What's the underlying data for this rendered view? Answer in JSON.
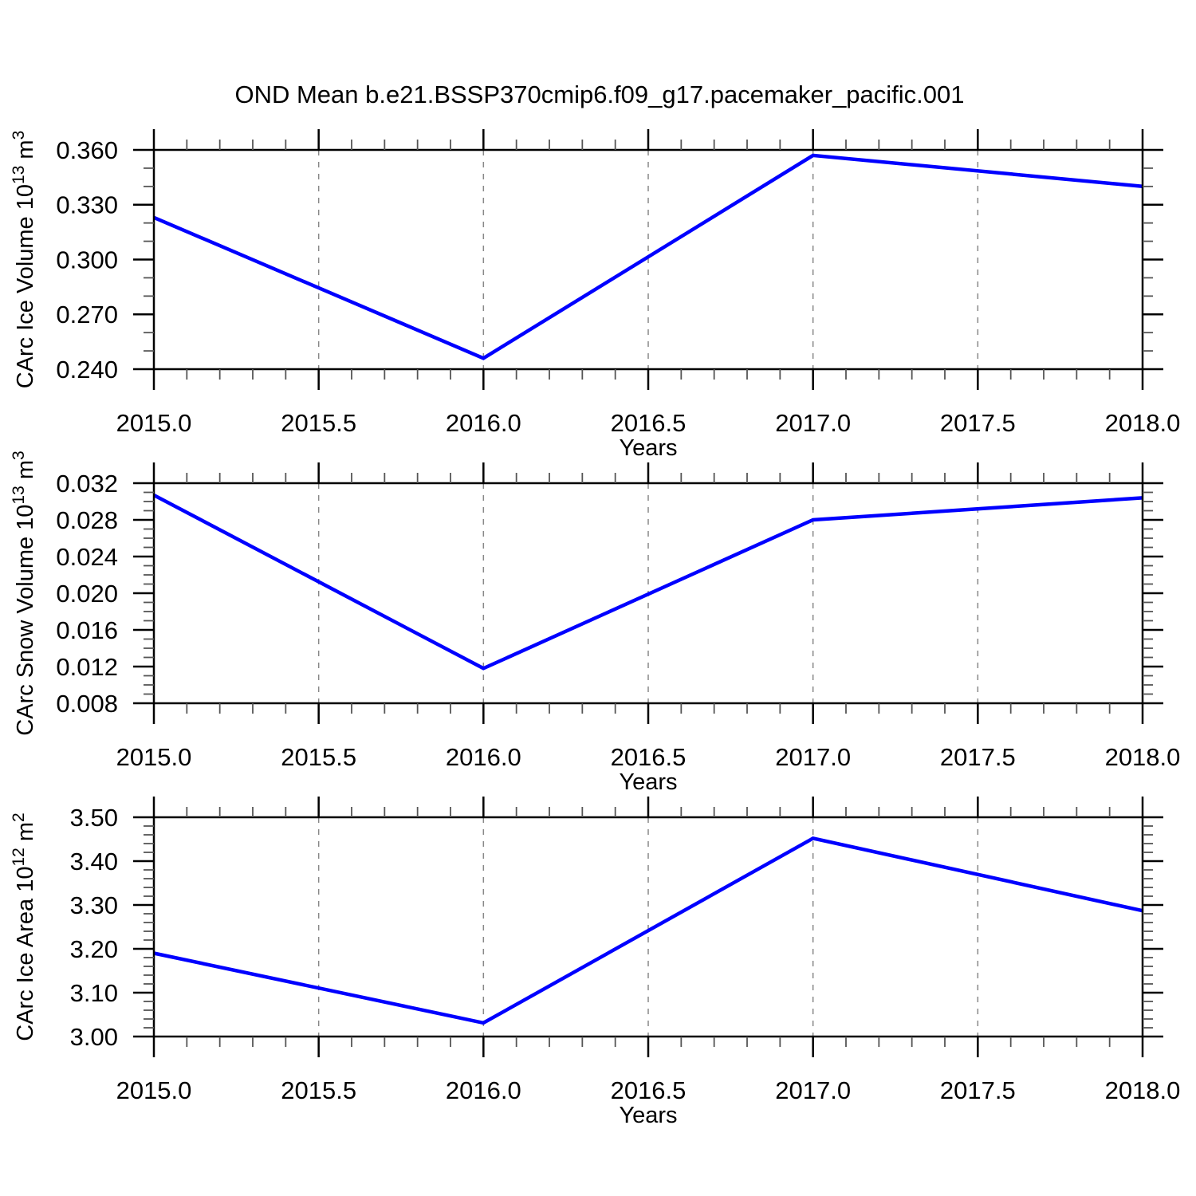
{
  "title": "OND Mean b.e21.BSSP370cmip6.f09_g17.pacemaker_pacific.001",
  "line_color": "#0000ff",
  "grid_color": "#888888",
  "axis_color": "#000000",
  "chart_data": [
    {
      "id": "carc-ice-volume",
      "type": "line",
      "x": [
        2015.0,
        2016.0,
        2017.0,
        2018.0
      ],
      "values": [
        0.323,
        0.246,
        0.357,
        0.34
      ],
      "xlabel": "Years",
      "ylabel_parts": [
        {
          "text": "CArc Ice Volume 10"
        },
        {
          "sup": "13"
        },
        {
          "text": " m"
        },
        {
          "sup": "3"
        }
      ],
      "ylim": [
        0.24,
        0.36
      ],
      "ytick_major": 0.03,
      "ytick_minor": 0.01,
      "ytick_decimals": 3,
      "xlim": [
        2015.0,
        2018.0
      ],
      "xtick_major": 0.5,
      "xtick_minor": 0.1,
      "xtick_decimals": 1,
      "grid_x": [
        2015.5,
        2016.0,
        2016.5,
        2017.0,
        2017.5
      ],
      "grid_on": true,
      "legend": null
    },
    {
      "id": "carc-snow-volume",
      "type": "line",
      "x": [
        2015.0,
        2016.0,
        2017.0,
        2018.0
      ],
      "values": [
        0.0307,
        0.0118,
        0.028,
        0.0304
      ],
      "xlabel": "Years",
      "ylabel_parts": [
        {
          "text": "CArc Snow Volume 10"
        },
        {
          "sup": "13"
        },
        {
          "text": " m"
        },
        {
          "sup": "3"
        }
      ],
      "ylim": [
        0.008,
        0.032
      ],
      "ytick_major": 0.004,
      "ytick_minor": 0.001,
      "ytick_decimals": 3,
      "xlim": [
        2015.0,
        2018.0
      ],
      "xtick_major": 0.5,
      "xtick_minor": 0.1,
      "xtick_decimals": 1,
      "grid_x": [
        2015.5,
        2016.0,
        2016.5,
        2017.0,
        2017.5
      ],
      "grid_on": true,
      "legend": null
    },
    {
      "id": "carc-ice-area",
      "type": "line",
      "x": [
        2015.0,
        2016.0,
        2017.0,
        2018.0
      ],
      "values": [
        3.19,
        3.031,
        3.452,
        3.287
      ],
      "xlabel": "Years",
      "ylabel_parts": [
        {
          "text": "CArc Ice Area 10"
        },
        {
          "sup": "12"
        },
        {
          "text": " m"
        },
        {
          "sup": "2"
        }
      ],
      "ylim": [
        3.0,
        3.5
      ],
      "ytick_major": 0.1,
      "ytick_minor": 0.02,
      "ytick_decimals": 2,
      "xlim": [
        2015.0,
        2018.0
      ],
      "xtick_major": 0.5,
      "xtick_minor": 0.1,
      "xtick_decimals": 1,
      "grid_x": [
        2015.5,
        2016.0,
        2016.5,
        2017.0,
        2017.5
      ],
      "grid_on": true,
      "legend": null
    }
  ]
}
